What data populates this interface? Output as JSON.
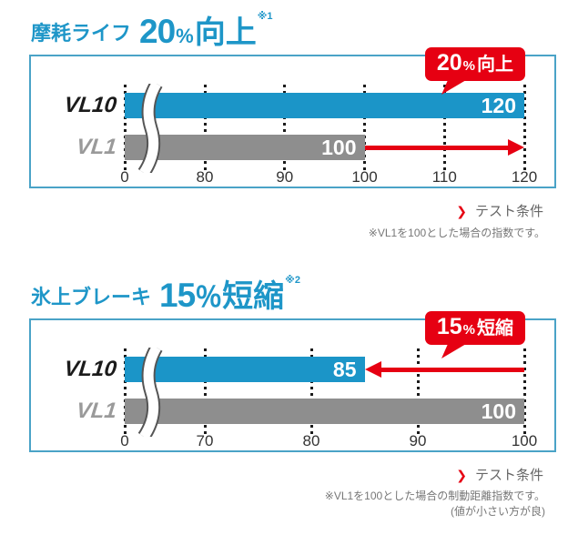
{
  "palette": {
    "blue": "#1b95c8",
    "red": "#e60012",
    "gray_bar": "#8e8e8e",
    "box_border": "#4aa3c7",
    "label_dark": "#1b1b1b",
    "label_gray": "#9a9a9a"
  },
  "sections": [
    {
      "title": {
        "prefix": "摩耗ライフ",
        "num": "20",
        "percent": "%",
        "suffix": "向上",
        "ref": "※1"
      },
      "badge": {
        "num": "20",
        "percent": "%",
        "suffix": "向上"
      },
      "test_link": "テスト条件",
      "notes": [
        "※VL1を100とした場合の指数です。"
      ]
    },
    {
      "title": {
        "prefix": "氷上ブレーキ",
        "num": "15",
        "percent": "％",
        "suffix": "短縮",
        "ref": "※2"
      },
      "badge": {
        "num": "15",
        "percent": "%",
        "suffix": "短縮"
      },
      "test_link": "テスト条件",
      "notes": [
        "※VL1を100とした場合の制動距離指数です。",
        "(値が小さい方が良)"
      ]
    }
  ],
  "chart_data": [
    {
      "type": "bar",
      "orientation": "horizontal",
      "title": "摩耗ライフ 20%向上 ※1",
      "categories": [
        "VL10",
        "VL1"
      ],
      "values": [
        120,
        100
      ],
      "bar_colors": [
        "#1b95c8",
        "#8e8e8e"
      ],
      "ticks": [
        0,
        80,
        90,
        100,
        110,
        120
      ],
      "axis_break": "between 0 and 80",
      "xlim": [
        0,
        120
      ],
      "grid": "dotted vertical at each tick",
      "annotation": {
        "label": "20%向上",
        "row": "VL1",
        "from": 100,
        "to": 120
      }
    },
    {
      "type": "bar",
      "orientation": "horizontal",
      "title": "氷上ブレーキ 15％短縮 ※2",
      "categories": [
        "VL10",
        "VL1"
      ],
      "values": [
        85,
        100
      ],
      "bar_colors": [
        "#1b95c8",
        "#8e8e8e"
      ],
      "ticks": [
        0,
        70,
        80,
        90,
        100
      ],
      "axis_break": "between 0 and 70",
      "xlim": [
        0,
        100
      ],
      "grid": "dotted vertical at each tick",
      "annotation": {
        "label": "15%短縮",
        "row": "VL10",
        "from": 100,
        "to": 85
      }
    }
  ]
}
